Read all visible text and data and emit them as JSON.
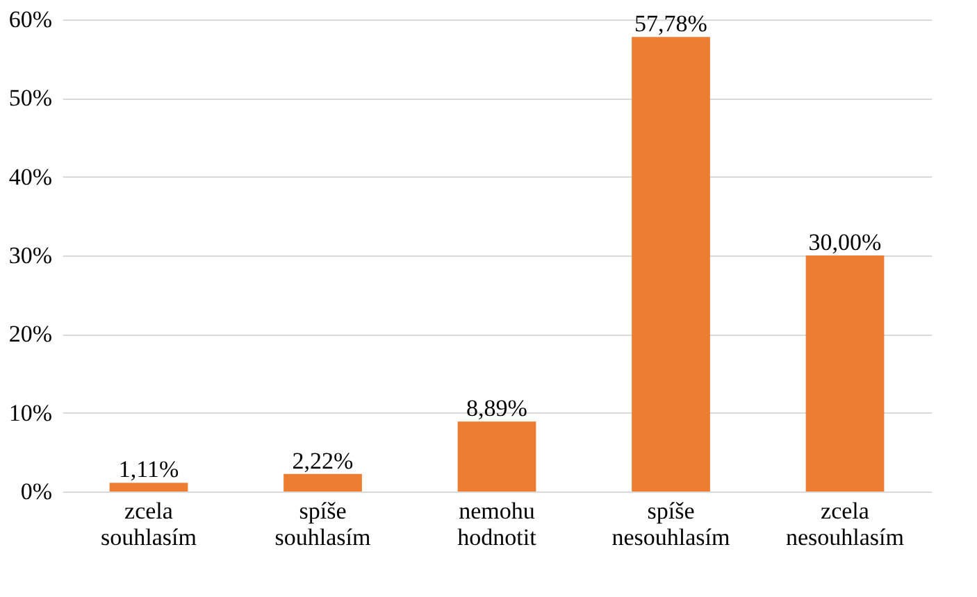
{
  "chart_data": {
    "type": "bar",
    "categories": [
      "zcela souhlasím",
      "spíše souhlasím",
      "nemohu hodnotit",
      "spíše nesouhlasím",
      "zcela nesouhlasím"
    ],
    "values": [
      1.11,
      2.22,
      8.89,
      57.78,
      30.0
    ],
    "value_labels": [
      "1,11%",
      "2,22%",
      "8,89%",
      "57,78%",
      "30,00%"
    ],
    "color": "#ed7d31",
    "ylim": [
      0,
      60
    ],
    "yticks": [
      {
        "value": 0,
        "label": "0%"
      },
      {
        "value": 10,
        "label": "10%"
      },
      {
        "value": 20,
        "label": "20%"
      },
      {
        "value": 30,
        "label": "30%"
      },
      {
        "value": 40,
        "label": "40%"
      },
      {
        "value": 50,
        "label": "50%"
      },
      {
        "value": 60,
        "label": "60%"
      }
    ],
    "grid": "y"
  }
}
